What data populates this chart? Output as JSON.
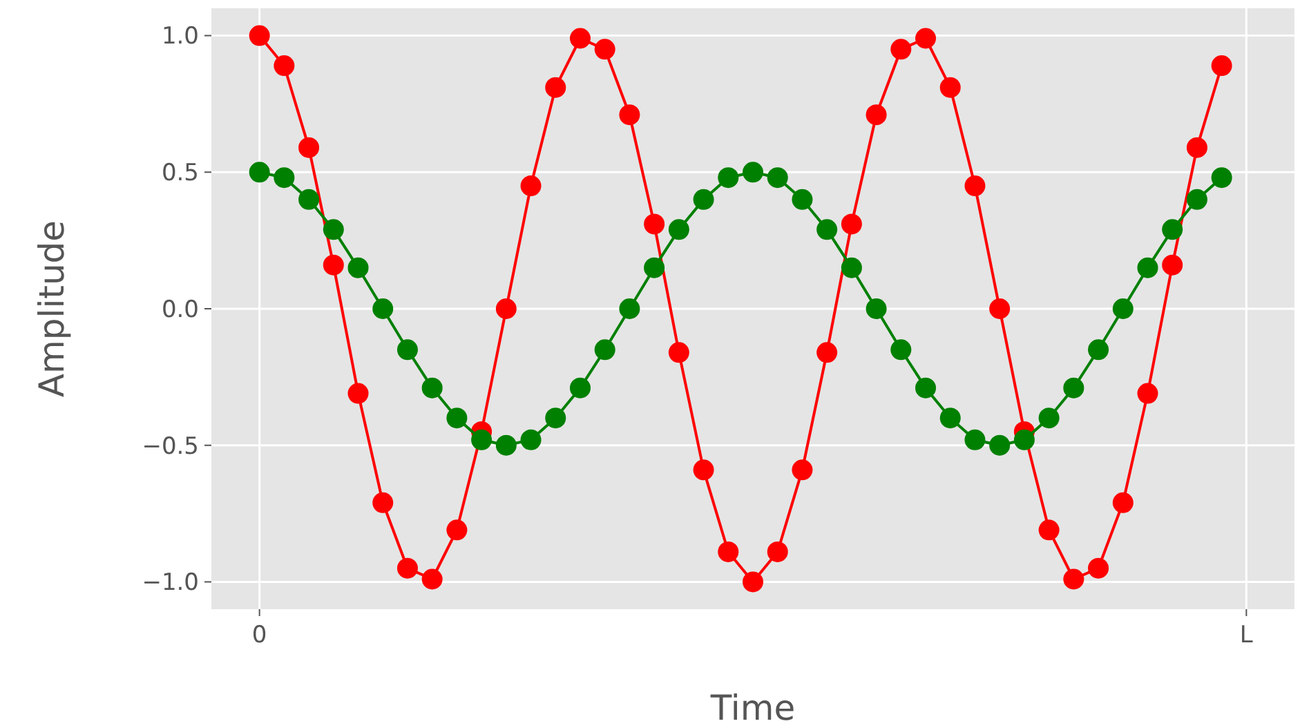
{
  "chart_data": {
    "type": "line",
    "xlabel": "Time",
    "ylabel": "Amplitude",
    "categories": [
      "0",
      null,
      null,
      null,
      null,
      null,
      null,
      null,
      null,
      null,
      null,
      null,
      null,
      null,
      null,
      null,
      null,
      null,
      null,
      null,
      null,
      null,
      null,
      null,
      null,
      null,
      null,
      null,
      null,
      null,
      null,
      null,
      null,
      null,
      null,
      null,
      null,
      null,
      null,
      null,
      "L"
    ],
    "series": [
      {
        "color": "#ff0000",
        "values": [
          1.0,
          0.89,
          0.59,
          0.16,
          -0.31,
          -0.71,
          -0.95,
          -0.99,
          -0.81,
          -0.45,
          0.0,
          0.45,
          0.81,
          0.99,
          0.95,
          0.71,
          0.31,
          -0.16,
          -0.59,
          -0.89,
          -1.0,
          -0.89,
          -0.59,
          -0.16,
          0.31,
          0.71,
          0.95,
          0.99,
          0.81,
          0.45,
          0.0,
          -0.45,
          -0.81,
          -0.99,
          -0.95,
          -0.71,
          -0.31,
          0.16,
          0.59,
          0.89,
          null
        ]
      },
      {
        "color": "#008000",
        "values": [
          0.5,
          0.48,
          0.4,
          0.29,
          0.15,
          0.0,
          -0.15,
          -0.29,
          -0.4,
          -0.48,
          -0.5,
          -0.48,
          -0.4,
          -0.29,
          -0.15,
          0.0,
          0.15,
          0.29,
          0.4,
          0.48,
          0.5,
          0.48,
          0.4,
          0.29,
          0.15,
          0.0,
          -0.15,
          -0.29,
          -0.4,
          -0.48,
          -0.5,
          -0.48,
          -0.4,
          -0.29,
          -0.15,
          0.0,
          0.15,
          0.29,
          0.4,
          0.48,
          null
        ]
      }
    ],
    "ylim": [
      -1.1,
      1.1
    ],
    "yticks": [
      {
        "value": -1.0,
        "label": "−1.0"
      },
      {
        "value": -0.5,
        "label": "−0.5"
      },
      {
        "value": 0,
        "label": "0.0"
      },
      {
        "value": 0.5,
        "label": "0.5"
      },
      {
        "value": 1.0,
        "label": "1.0"
      }
    ],
    "grid": true,
    "marker": "circle",
    "line_style": "solid"
  }
}
